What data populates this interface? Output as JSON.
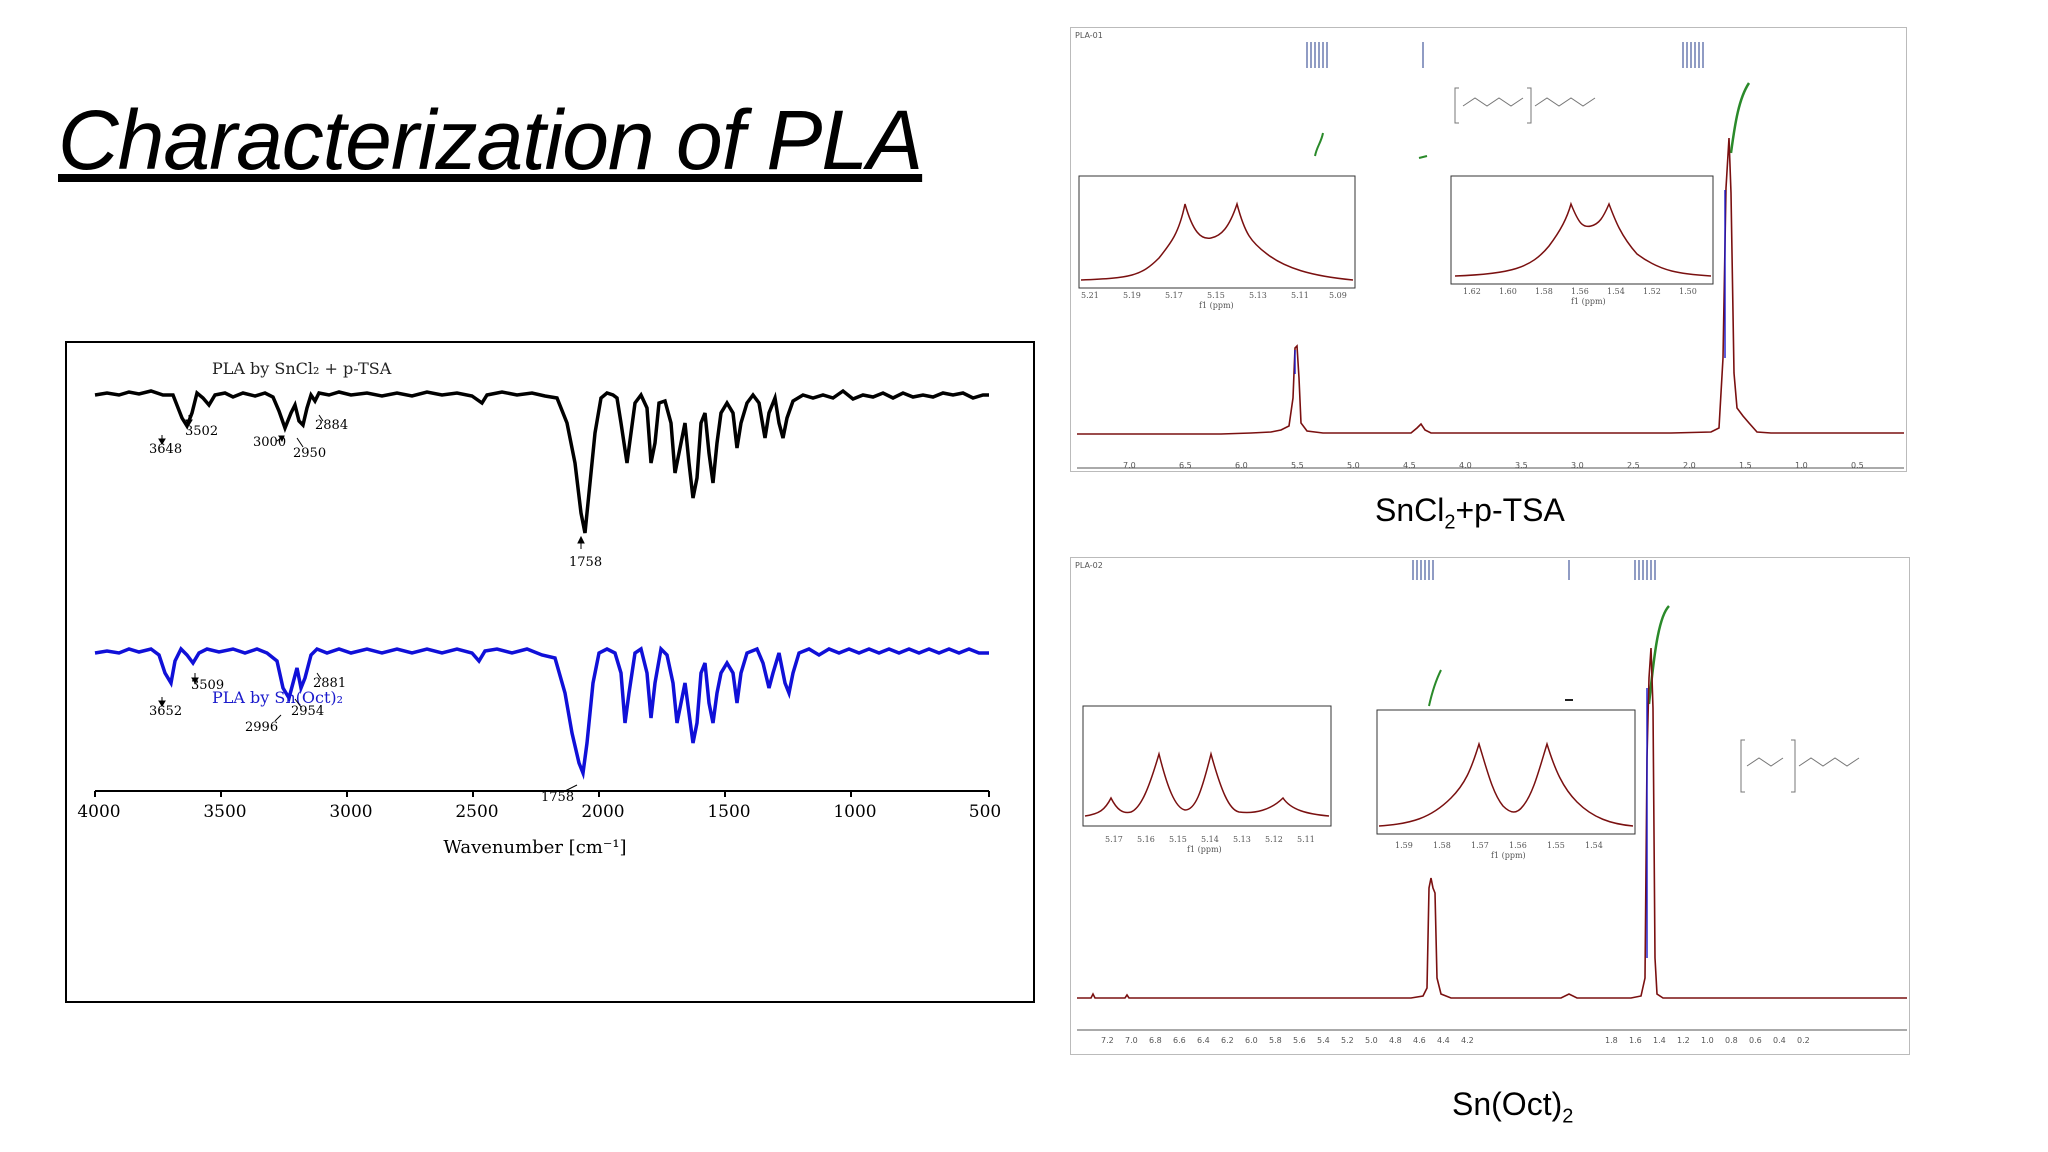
{
  "slide": {
    "title": "Characterization of PLA"
  },
  "ir_panel": {
    "black_series_label": "PLA by SnCl₂ + p-TSA",
    "blue_series_label": "PLA by Sn(Oct)₂",
    "xlabel": "Wavenumber [cm⁻¹]",
    "x_ticks": [
      "4000",
      "3500",
      "3000",
      "2500",
      "2000",
      "1500",
      "1000",
      "500"
    ],
    "black_peaks": [
      "3648",
      "3502",
      "3000",
      "2950",
      "2884",
      "1758"
    ],
    "blue_peaks": [
      "3652",
      "3509",
      "2996",
      "2954",
      "2881",
      "1758"
    ]
  },
  "nmr_top": {
    "caption_main": "SnCl",
    "caption_sub": "2",
    "caption_tail": "+p-TSA",
    "sample_id": "PLA-01",
    "axis_label": "f1 (ppm)",
    "axis_ticks": [
      "7.0",
      "6.5",
      "6.0",
      "5.5",
      "5.0",
      "4.5",
      "4.0",
      "3.5",
      "3.0",
      "2.5",
      "2.0",
      "1.5",
      "1.0",
      "0.5"
    ],
    "inset1_ticks": [
      "5.21",
      "5.19",
      "5.17",
      "5.15",
      "5.13",
      "5.11",
      "5.09"
    ],
    "inset2_ticks": [
      "1.62",
      "1.60",
      "1.58",
      "1.56",
      "1.54",
      "1.52",
      "1.50"
    ]
  },
  "nmr_bottom": {
    "caption_main": "Sn(Oct)",
    "caption_sub": "2",
    "sample_id": "PLA-02",
    "axis_label": "f1 (ppm)",
    "axis_ticks": [
      "7.2",
      "7.0",
      "6.8",
      "6.6",
      "6.4",
      "6.2",
      "6.0",
      "5.8",
      "5.6",
      "5.4",
      "5.2",
      "5.0",
      "4.8",
      "4.6",
      "4.4",
      "4.2",
      "1.8",
      "1.6",
      "1.4",
      "1.2",
      "1.0",
      "0.8",
      "0.6",
      "0.4",
      "0.2"
    ],
    "inset1_ticks": [
      "5.17",
      "5.16",
      "5.15",
      "5.14",
      "5.13",
      "5.12",
      "5.11"
    ],
    "inset2_ticks": [
      "1.59",
      "1.58",
      "1.57",
      "1.56",
      "1.55",
      "1.54"
    ]
  }
}
